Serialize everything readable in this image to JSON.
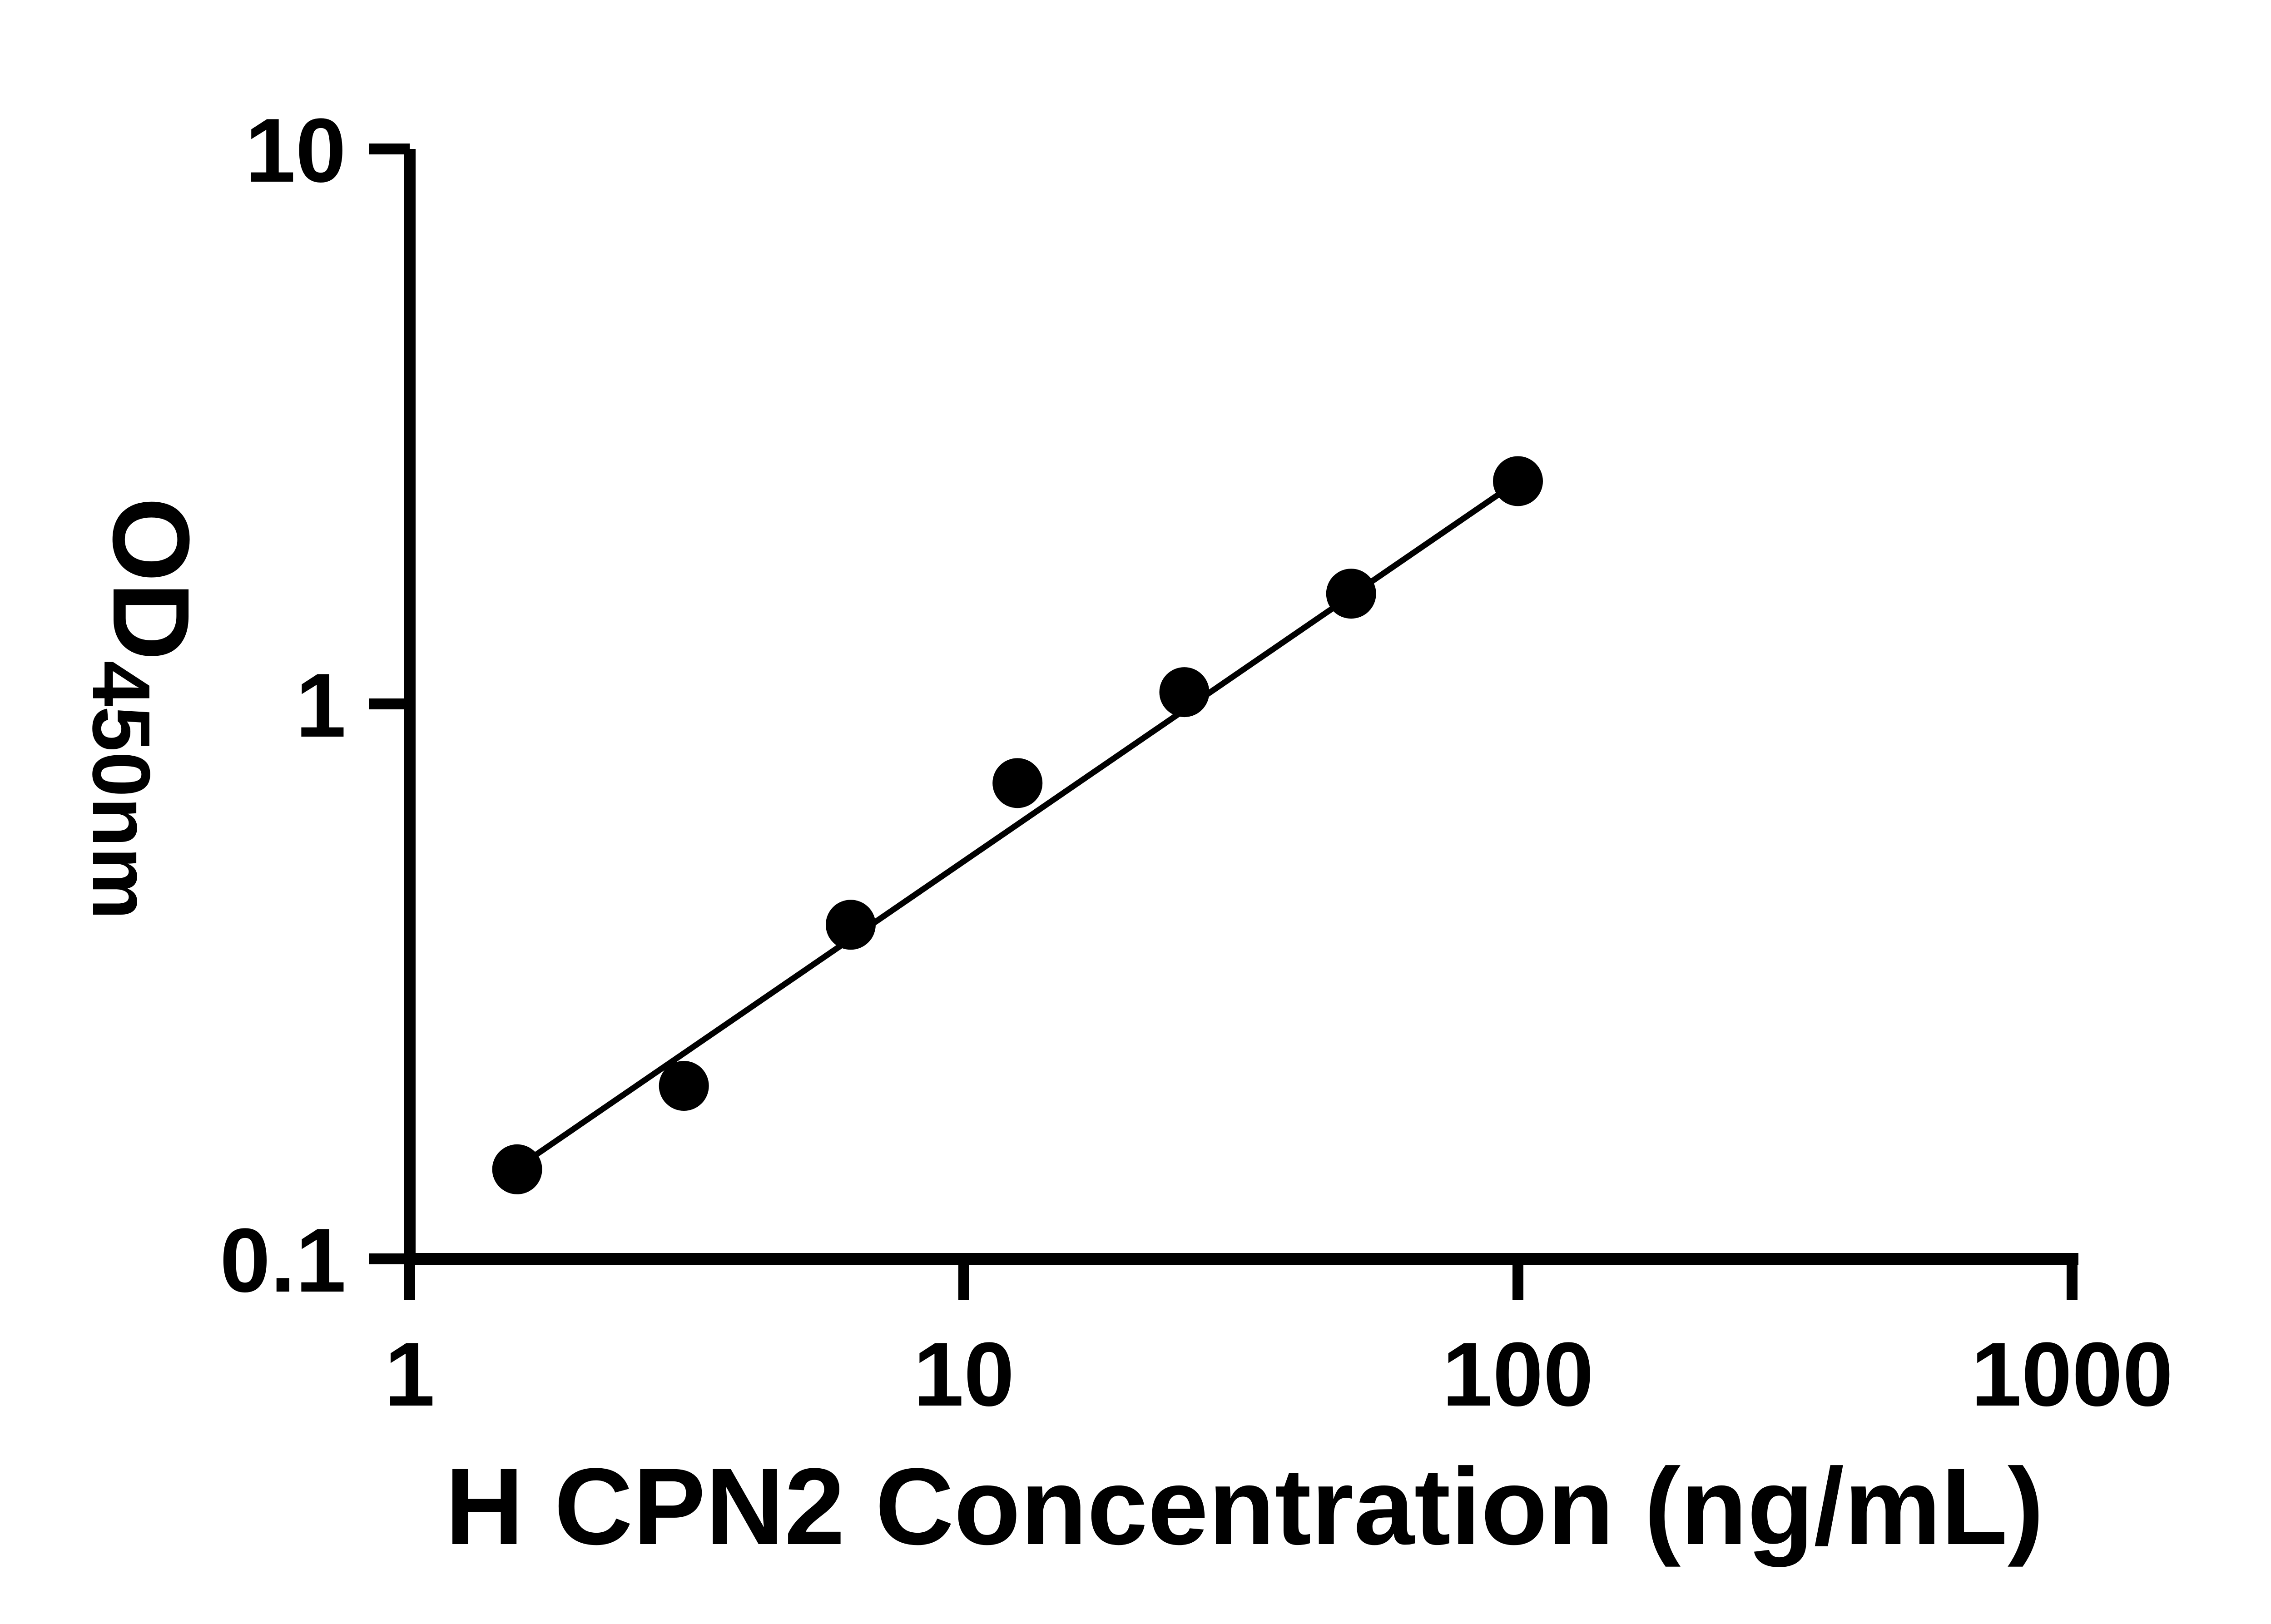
{
  "page": {
    "background": "#ffffff"
  },
  "chart_data": {
    "type": "scatter",
    "title": "",
    "xlabel": "H CPN2 Concentration (ng/mL)",
    "ylabel": "OD450nm",
    "ylabel_main": "OD",
    "ylabel_sub": "450nm",
    "x_scale": "log",
    "y_scale": "log",
    "xlim": [
      1,
      1000
    ],
    "ylim": [
      0.1,
      10
    ],
    "x_ticks": [
      1,
      10,
      100,
      1000
    ],
    "x_tick_labels": [
      "1",
      "10",
      "100",
      "1000"
    ],
    "y_ticks": [
      0.1,
      1,
      10
    ],
    "y_tick_labels": [
      "0.1",
      "1",
      "10"
    ],
    "grid": false,
    "legend": null,
    "axis_color": "#000000",
    "marker_color": "#000000",
    "line_color": "#000000",
    "marker_style": "filled-circle",
    "points": [
      {
        "x": 1.563,
        "y": 0.145
      },
      {
        "x": 3.125,
        "y": 0.205
      },
      {
        "x": 6.25,
        "y": 0.4
      },
      {
        "x": 12.5,
        "y": 0.72
      },
      {
        "x": 25,
        "y": 1.05
      },
      {
        "x": 50,
        "y": 1.58
      },
      {
        "x": 100,
        "y": 2.52
      }
    ],
    "trend_line": {
      "x": [
        1.563,
        100
      ],
      "y": [
        0.146,
        2.52
      ]
    }
  }
}
